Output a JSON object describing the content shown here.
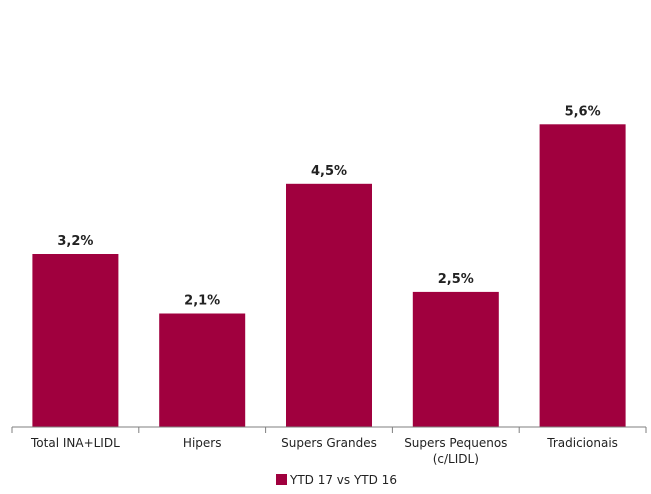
{
  "chart_data": {
    "type": "bar",
    "categories": [
      "Total INA+LIDL",
      "Hipers",
      "Supers Grandes",
      "Supers Pequenos\n(c/LIDL)",
      "Tradicionais"
    ],
    "series": [
      {
        "name": "YTD 17 vs YTD 16",
        "values": [
          3.2,
          2.1,
          4.5,
          2.5,
          5.6
        ],
        "value_labels": [
          "3,2%",
          "2,1%",
          "4,5%",
          "2,5%",
          "5,6%"
        ],
        "color": "#A0003E"
      }
    ],
    "title": "",
    "xlabel": "",
    "ylabel": "",
    "ylim": [
      0,
      7.9
    ],
    "grid": false,
    "legend_position": "bottom-center",
    "axis_color": "#7f7f7f"
  }
}
